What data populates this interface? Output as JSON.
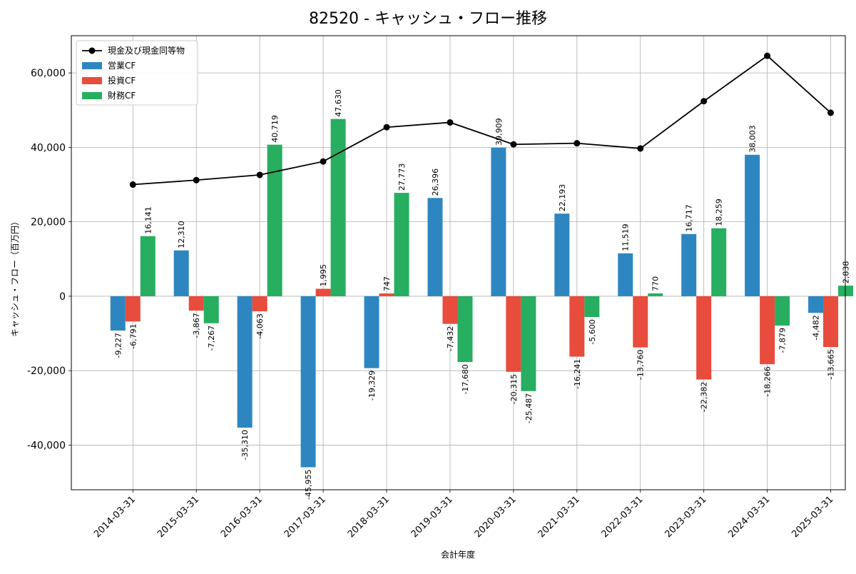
{
  "chart_data": {
    "type": "bar",
    "title": "82520 - キャッシュ・フロー推移",
    "xlabel": "会計年度",
    "ylabel": "キャッシュ・フロー（百万円）",
    "categories": [
      "2014-03-31",
      "2015-03-31",
      "2016-03-31",
      "2017-03-31",
      "2018-03-31",
      "2019-03-31",
      "2020-03-31",
      "2021-03-31",
      "2022-03-31",
      "2023-03-31",
      "2024-03-31",
      "2025-03-31"
    ],
    "ylim": [
      -52000,
      70000
    ],
    "yticks": [
      -40000,
      -20000,
      0,
      20000,
      40000,
      60000
    ],
    "ytick_labels": [
      "-40,000",
      "-20,000",
      "0",
      "20,000",
      "40,000",
      "60,000"
    ],
    "grid": true,
    "legend_position": "top-left",
    "series": [
      {
        "name": "営業CF",
        "color": "#2e86c1",
        "values": [
          -9227,
          12310,
          -35310,
          -45955,
          -19329,
          26396,
          39909,
          22193,
          11519,
          16717,
          38003,
          -4482
        ],
        "labels": [
          "-9,227",
          "12,310",
          "-35,310",
          "-45,955",
          "-19,329",
          "26,396",
          "39,909",
          "22,193",
          "11,519",
          "16,717",
          "38,003",
          "-4,482"
        ]
      },
      {
        "name": "投資CF",
        "color": "#e74c3c",
        "values": [
          -6791,
          -3867,
          -4063,
          1995,
          747,
          -7432,
          -20315,
          -16241,
          -13760,
          -22382,
          -18266,
          -13665
        ],
        "labels": [
          "-6,791",
          "-3,867",
          "-4,063",
          "1,995",
          "747",
          "-7,432",
          "-20,315",
          "-16,241",
          "-13,760",
          "-22,382",
          "-18,266",
          "-13,665"
        ]
      },
      {
        "name": "財務CF",
        "color": "#27ae60",
        "values": [
          16141,
          -7267,
          40719,
          47630,
          27773,
          -17680,
          -25487,
          -5600,
          770,
          18259,
          -7879,
          2838
        ],
        "labels": [
          "16,141",
          "-7,267",
          "40,719",
          "47,630",
          "27,773",
          "-17,680",
          "-25,487",
          "-5,600",
          "770",
          "18,259",
          "-7,879",
          "2,838"
        ]
      }
    ],
    "line": {
      "name": "現金及び現金同等物",
      "color": "#000000",
      "values": [
        30000,
        31200,
        32600,
        36200,
        45400,
        46700,
        40800,
        41100,
        39700,
        52400,
        64600,
        49300
      ]
    }
  }
}
